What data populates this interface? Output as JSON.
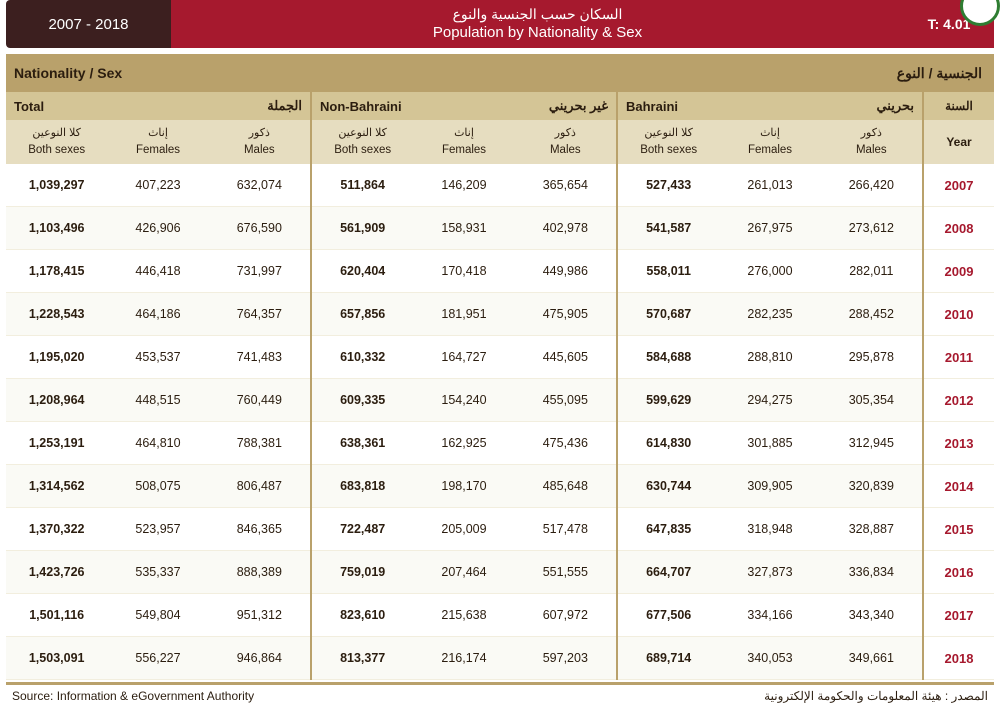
{
  "header": {
    "year_range": "2007 - 2018",
    "title_ar": "السكان حسب الجنسية والنوع",
    "title_en": "Population by Nationality & Sex",
    "table_no": "T: 4.01"
  },
  "super": {
    "left": "Nationality / Sex",
    "right": "الجنسية / النوع"
  },
  "groups": [
    {
      "en": "Total",
      "ar": "الجملة"
    },
    {
      "en": "Non-Bahraini",
      "ar": "غير بحريني"
    },
    {
      "en": "Bahraini",
      "ar": "بحريني"
    }
  ],
  "subcols": {
    "both_ar": "كلا النوعين",
    "both_en": "Both sexes",
    "fem_ar": "إناث",
    "fem_en": "Females",
    "mal_ar": "ذكور",
    "mal_en": "Males"
  },
  "year_hdr": {
    "ar": "السنة",
    "en": "Year"
  },
  "rows": [
    {
      "year": "2007",
      "total": {
        "b": "1,039,297",
        "f": "407,223",
        "m": "632,074"
      },
      "non": {
        "b": "511,864",
        "f": "146,209",
        "m": "365,654"
      },
      "bah": {
        "b": "527,433",
        "f": "261,013",
        "m": "266,420"
      }
    },
    {
      "year": "2008",
      "total": {
        "b": "1,103,496",
        "f": "426,906",
        "m": "676,590"
      },
      "non": {
        "b": "561,909",
        "f": "158,931",
        "m": "402,978"
      },
      "bah": {
        "b": "541,587",
        "f": "267,975",
        "m": "273,612"
      }
    },
    {
      "year": "2009",
      "total": {
        "b": "1,178,415",
        "f": "446,418",
        "m": "731,997"
      },
      "non": {
        "b": "620,404",
        "f": "170,418",
        "m": "449,986"
      },
      "bah": {
        "b": "558,011",
        "f": "276,000",
        "m": "282,011"
      }
    },
    {
      "year": "2010",
      "total": {
        "b": "1,228,543",
        "f": "464,186",
        "m": "764,357"
      },
      "non": {
        "b": "657,856",
        "f": "181,951",
        "m": "475,905"
      },
      "bah": {
        "b": "570,687",
        "f": "282,235",
        "m": "288,452"
      }
    },
    {
      "year": "2011",
      "total": {
        "b": "1,195,020",
        "f": "453,537",
        "m": "741,483"
      },
      "non": {
        "b": "610,332",
        "f": "164,727",
        "m": "445,605"
      },
      "bah": {
        "b": "584,688",
        "f": "288,810",
        "m": "295,878"
      }
    },
    {
      "year": "2012",
      "total": {
        "b": "1,208,964",
        "f": "448,515",
        "m": "760,449"
      },
      "non": {
        "b": "609,335",
        "f": "154,240",
        "m": "455,095"
      },
      "bah": {
        "b": "599,629",
        "f": "294,275",
        "m": "305,354"
      }
    },
    {
      "year": "2013",
      "total": {
        "b": "1,253,191",
        "f": "464,810",
        "m": "788,381"
      },
      "non": {
        "b": "638,361",
        "f": "162,925",
        "m": "475,436"
      },
      "bah": {
        "b": "614,830",
        "f": "301,885",
        "m": "312,945"
      }
    },
    {
      "year": "2014",
      "total": {
        "b": "1,314,562",
        "f": "508,075",
        "m": "806,487"
      },
      "non": {
        "b": "683,818",
        "f": "198,170",
        "m": "485,648"
      },
      "bah": {
        "b": "630,744",
        "f": "309,905",
        "m": "320,839"
      }
    },
    {
      "year": "2015",
      "total": {
        "b": "1,370,322",
        "f": "523,957",
        "m": "846,365"
      },
      "non": {
        "b": "722,487",
        "f": "205,009",
        "m": "517,478"
      },
      "bah": {
        "b": "647,835",
        "f": "318,948",
        "m": "328,887"
      }
    },
    {
      "year": "2016",
      "total": {
        "b": "1,423,726",
        "f": "535,337",
        "m": "888,389"
      },
      "non": {
        "b": "759,019",
        "f": "207,464",
        "m": "551,555"
      },
      "bah": {
        "b": "664,707",
        "f": "327,873",
        "m": "336,834"
      }
    },
    {
      "year": "2017",
      "total": {
        "b": "1,501,116",
        "f": "549,804",
        "m": "951,312"
      },
      "non": {
        "b": "823,610",
        "f": "215,638",
        "m": "607,972"
      },
      "bah": {
        "b": "677,506",
        "f": "334,166",
        "m": "343,340"
      }
    },
    {
      "year": "2018",
      "total": {
        "b": "1,503,091",
        "f": "556,227",
        "m": "946,864"
      },
      "non": {
        "b": "813,377",
        "f": "216,174",
        "m": "597,203"
      },
      "bah": {
        "b": "689,714",
        "f": "340,053",
        "m": "349,661"
      }
    }
  ],
  "footer": {
    "source_en": "Source: Information & eGovernment Authority",
    "source_ar": "المصدر : هيئة المعلومات والحكومة الإلكترونية"
  },
  "colors": {
    "header_dark": "#3c1f1f",
    "header_red": "#a6192e",
    "band": "#b9a16b",
    "grp": "#d4c596",
    "sub": "#e6ddc0",
    "text": "#2b1d0f",
    "year_red": "#a6192e",
    "green": "#2e7d32"
  }
}
